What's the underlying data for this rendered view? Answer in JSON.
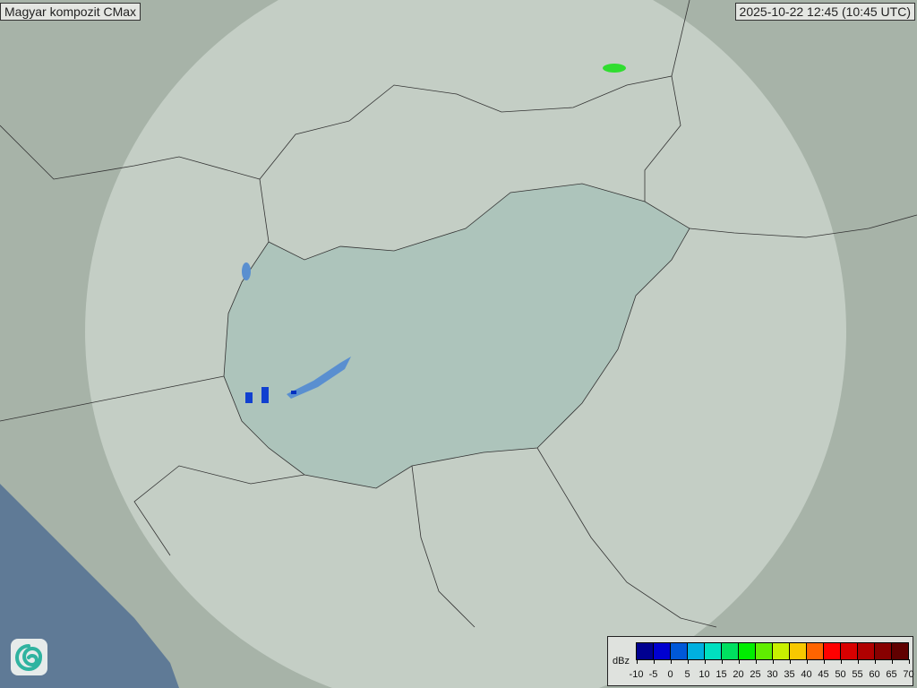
{
  "title": "Magyar kompozit  CMax",
  "timestamp": "2025-10-22 12:45 (10:45 UTC)",
  "legend": {
    "unit": "dBz",
    "ticks": [
      "-10",
      "-5",
      "0",
      "5",
      "10",
      "15",
      "20",
      "25",
      "30",
      "35",
      "40",
      "45",
      "50",
      "55",
      "60",
      "65",
      "70"
    ],
    "colors": [
      "#000090",
      "#0000d0",
      "#0058d8",
      "#00b0e0",
      "#00e0c0",
      "#00e060",
      "#00ee00",
      "#60ee00",
      "#c8f000",
      "#f8c800",
      "#ff6400",
      "#ff0000",
      "#d80000",
      "#b00000",
      "#880000",
      "#600000"
    ]
  },
  "logo": {
    "icon": "swirl-logo-icon"
  },
  "colors": {
    "land": "#a9b5aa",
    "coverage": "#c9d4cc",
    "hungary": "#a9c0b6",
    "sea": "#5f7a96"
  }
}
